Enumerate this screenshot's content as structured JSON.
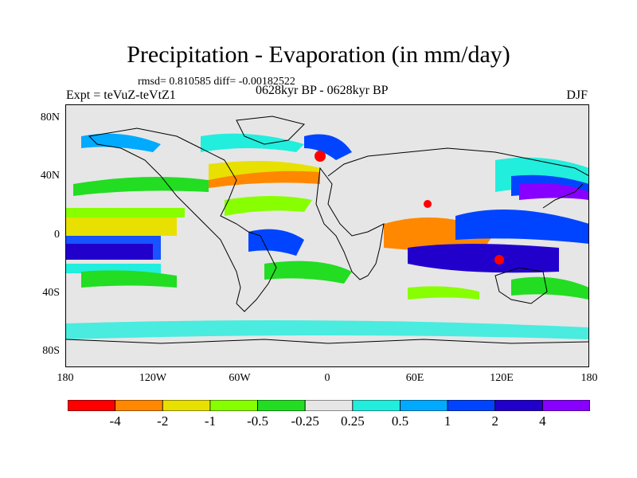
{
  "title": "Precipitation - Evaporation (in mm/day)",
  "stats": "rmsd= 0.810585 diff= -0.00182522",
  "experiment": "Expt = teVuZ-teVtZ1",
  "period": "0628kyr BP - 0628kyr BP",
  "season": "DJF",
  "y_ticks": [
    "80N",
    "40N",
    "0",
    "40S",
    "80S"
  ],
  "x_ticks": [
    "180",
    "120W",
    "60W",
    "0",
    "60E",
    "120E",
    "180"
  ],
  "colorbar": {
    "labels": [
      "-4",
      "-2",
      "-1",
      "-0.5",
      "-0.25",
      "0.25",
      "0.5",
      "1",
      "2",
      "4"
    ],
    "colors": [
      "#ff0000",
      "#ff8800",
      "#e8e000",
      "#88ff00",
      "#22dd22",
      "#e6e6e6",
      "#22eedd",
      "#00aaff",
      "#0044ff",
      "#2200cc",
      "#8800ff"
    ]
  }
}
